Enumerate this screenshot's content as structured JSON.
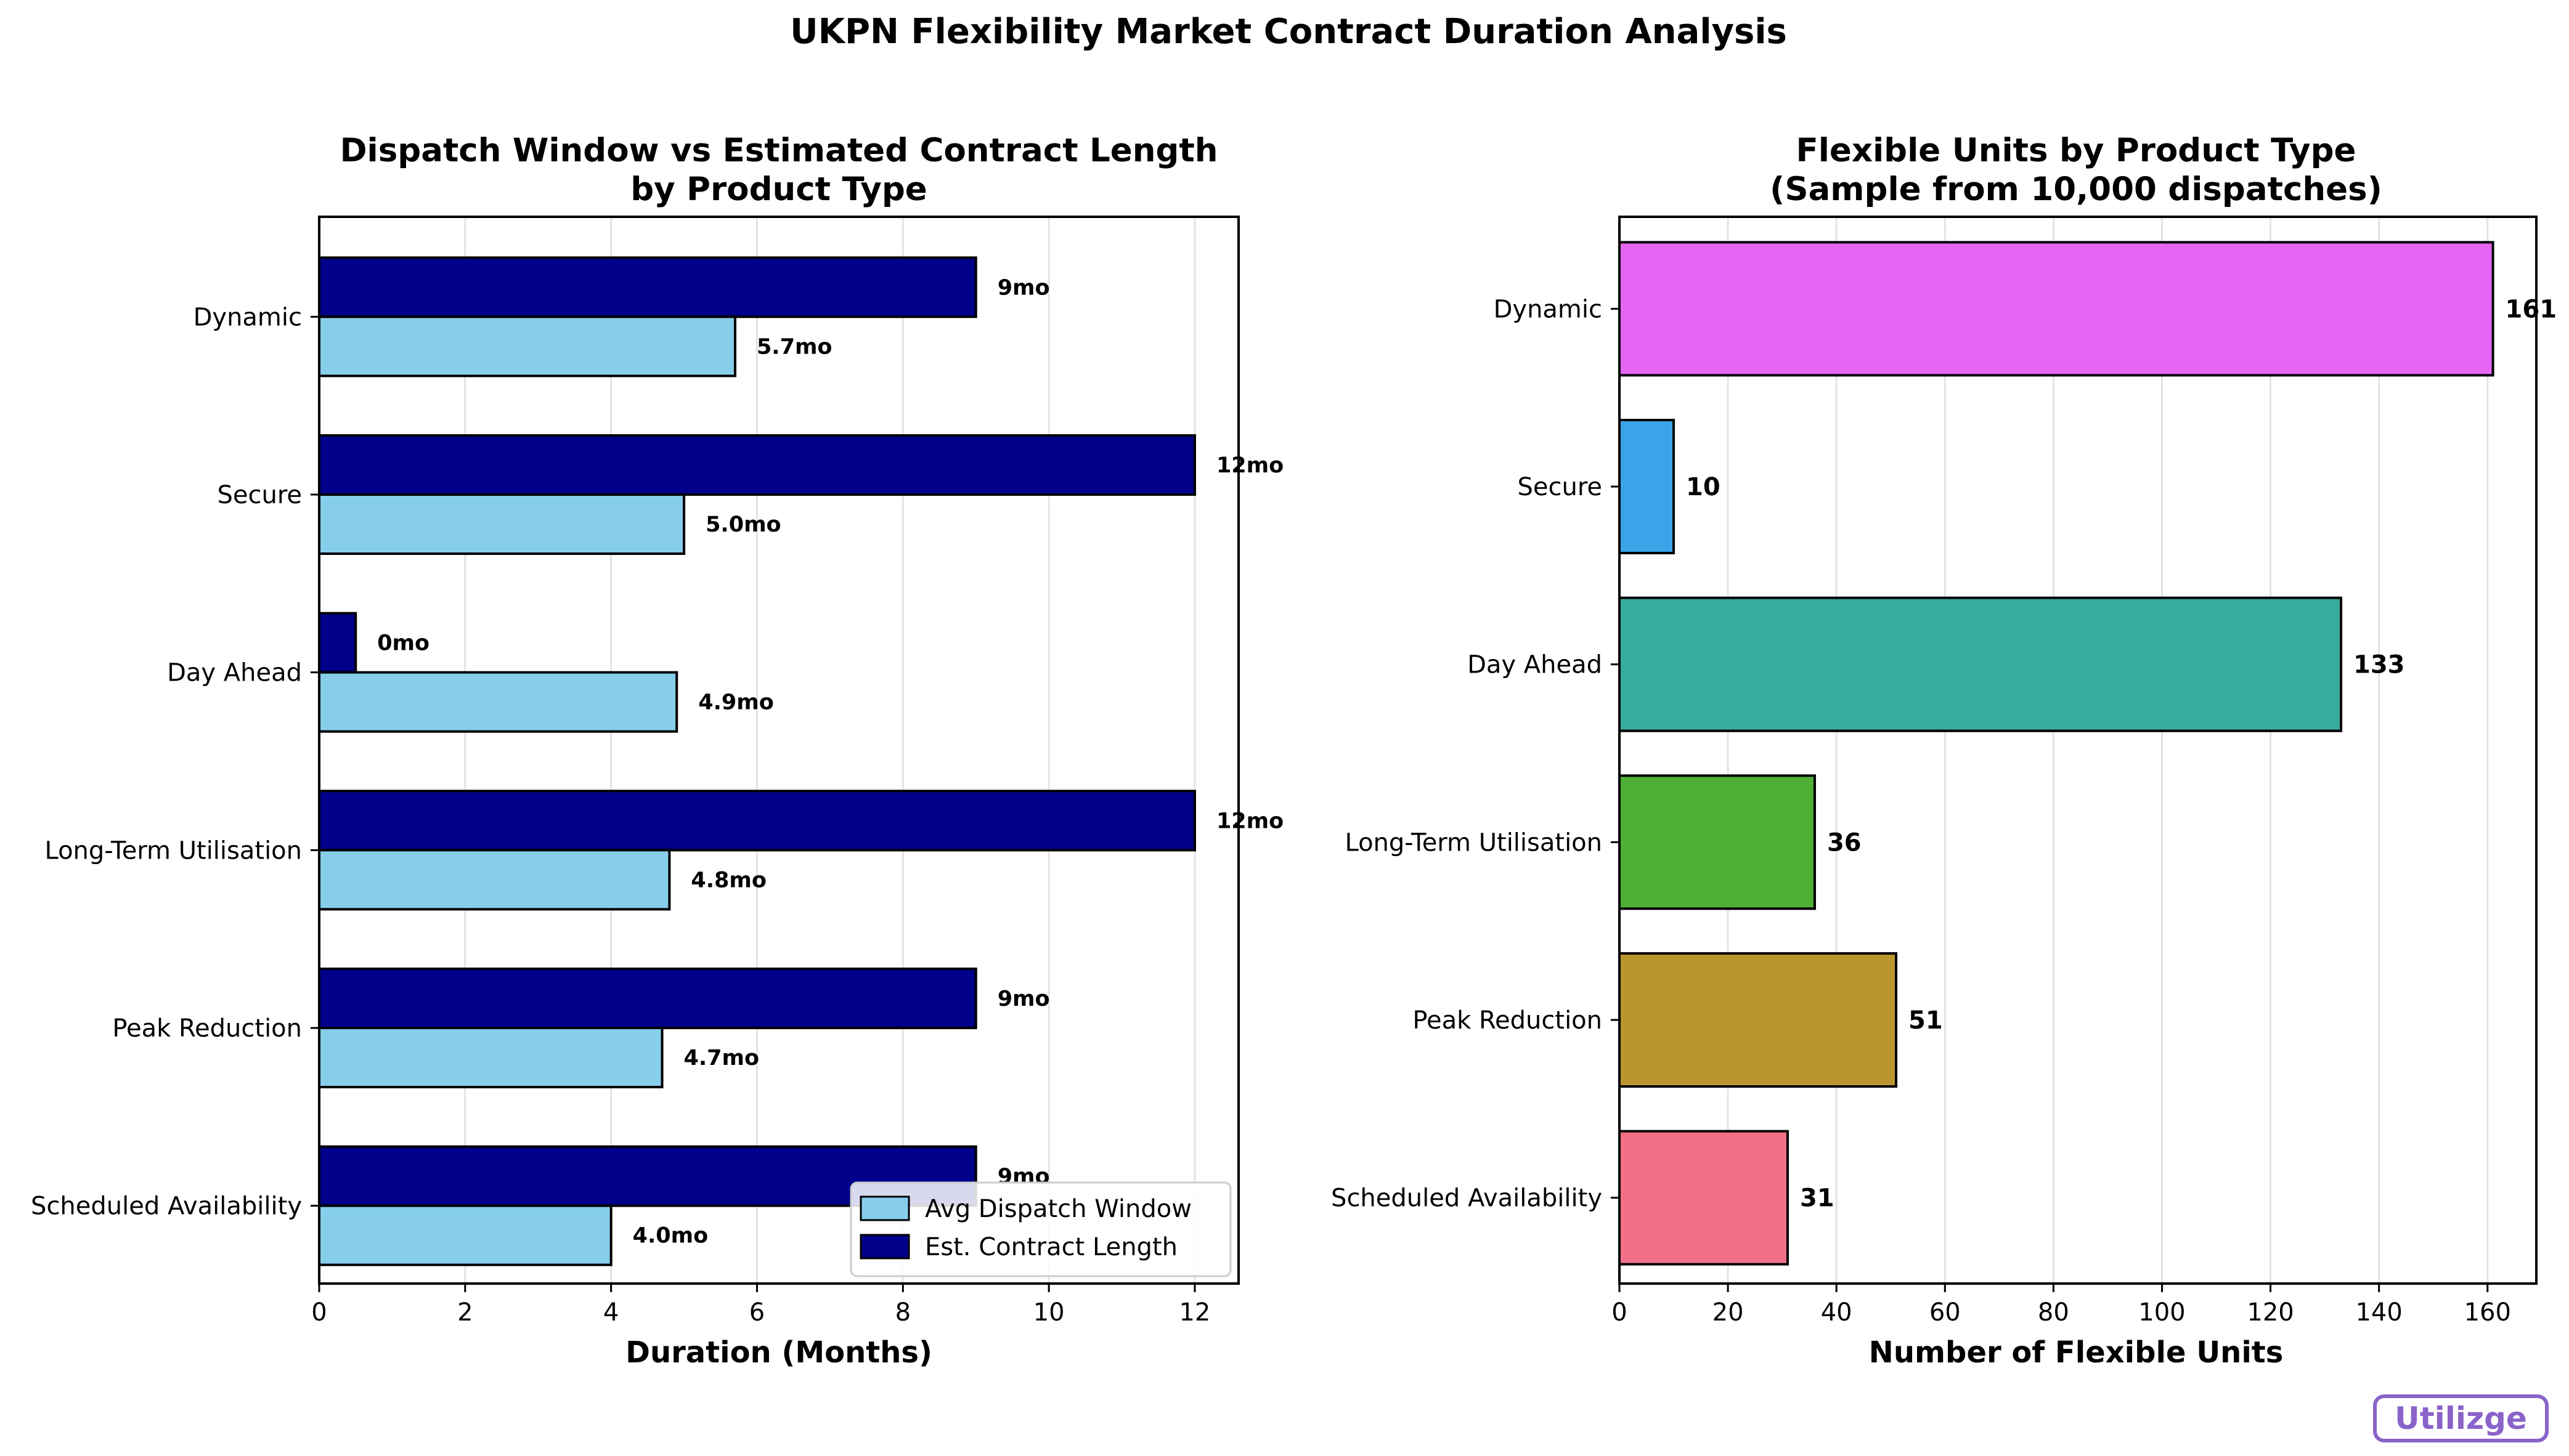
{
  "figure": {
    "suptitle": "UKPN Flexibility Market Contract Duration Analysis",
    "watermark": "Utilizge"
  },
  "chart_data": [
    {
      "type": "bar",
      "orientation": "horizontal",
      "title_line1": "Dispatch Window vs Estimated Contract Length",
      "title_line2": "by Product Type",
      "xlabel": "Duration (Months)",
      "ylabel": "",
      "categories": [
        "Dynamic",
        "Secure",
        "Day Ahead",
        "Long-Term Utilisation",
        "Peak Reduction",
        "Scheduled Availability"
      ],
      "series": [
        {
          "name": "Avg Dispatch Window",
          "color": "#87ceeb",
          "values": [
            5.7,
            5.0,
            4.9,
            4.8,
            4.7,
            4.0
          ],
          "labels": [
            "5.7mo",
            "5.0mo",
            "4.9mo",
            "4.8mo",
            "4.7mo",
            "4.0mo"
          ]
        },
        {
          "name": "Est. Contract Length",
          "color": "#00008b",
          "values": [
            9,
            12,
            0.5,
            12,
            9,
            9
          ],
          "labels": [
            "9mo",
            "12mo",
            "0mo",
            "12mo",
            "9mo",
            "9mo"
          ]
        }
      ],
      "xlim": [
        0,
        12.6
      ],
      "xticks": [
        "0",
        "2",
        "4",
        "6",
        "8",
        "10",
        "12"
      ],
      "grid": "x",
      "legend_position": "lower-right"
    },
    {
      "type": "bar",
      "orientation": "horizontal",
      "title_line1": "Flexible Units by Product Type",
      "title_line2": "(Sample from 10,000 dispatches)",
      "xlabel": "Number of Flexible Units",
      "ylabel": "",
      "categories": [
        "Dynamic",
        "Secure",
        "Day Ahead",
        "Long-Term Utilisation",
        "Peak Reduction",
        "Scheduled Availability"
      ],
      "values": [
        161,
        10,
        133,
        36,
        51,
        31
      ],
      "labels": [
        "161",
        "10",
        "133",
        "36",
        "51",
        "31"
      ],
      "colors": [
        "#e566f2",
        "#3ba3e8",
        "#37ab9f",
        "#4daf35",
        "#b9962f",
        "#f27087"
      ],
      "xlim": [
        0,
        169
      ],
      "xticks": [
        "0",
        "20",
        "40",
        "60",
        "80",
        "100",
        "120",
        "140",
        "160"
      ],
      "grid": "x"
    }
  ]
}
